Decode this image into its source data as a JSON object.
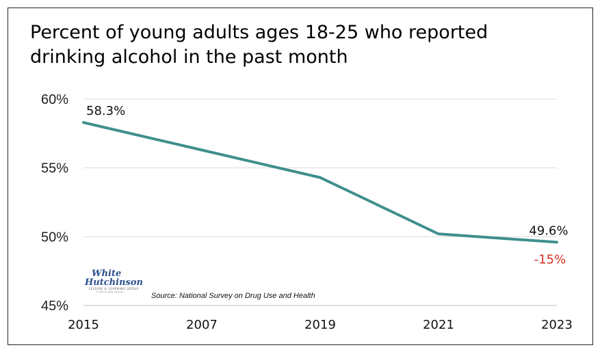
{
  "chart_data": {
    "type": "line",
    "title": "Percent of young adults ages 18-25 who reported\ndrinking alcohol in the past month",
    "categories": [
      "2015",
      "2007",
      "2019",
      "2021",
      "2023"
    ],
    "series": [
      {
        "values": [
          58.3,
          56.3,
          54.3,
          50.2,
          49.6
        ],
        "color": "#3f8f8c"
      }
    ],
    "ylim": [
      45,
      60
    ],
    "yticks": [
      60,
      55,
      50,
      45
    ],
    "ytick_labels": [
      "60%",
      "55%",
      "50%",
      "45%"
    ],
    "grid": true,
    "data_labels": [
      {
        "index": 0,
        "text": "58.3%"
      },
      {
        "index": 4,
        "text": "49.6%"
      }
    ],
    "annotations": [
      {
        "index": 4,
        "text": "-15%",
        "color": "#d7301f"
      }
    ]
  },
  "source": "Source: National Survey on Drug Use and Health",
  "logo": {
    "line1": "White",
    "line2": "Hutchinson",
    "line3": "LEISURE & LEARNING GROUP",
    "line4": "© 2025 all rights reserved"
  }
}
